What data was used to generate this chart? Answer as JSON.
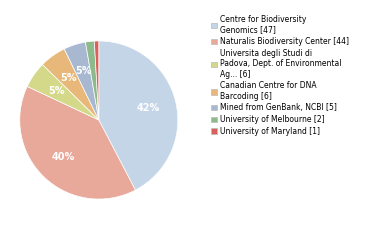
{
  "labels": [
    "Centre for Biodiversity\nGenomics [47]",
    "Naturalis Biodiversity Center [44]",
    "Universita degli Studi di\nPadova, Dept. of Environmental\nAg... [6]",
    "Canadian Centre for DNA\nBarcoding [6]",
    "Mined from GenBank, NCBI [5]",
    "University of Melbourne [2]",
    "University of Maryland [1]"
  ],
  "values": [
    47,
    44,
    6,
    6,
    5,
    2,
    1
  ],
  "colors": [
    "#c5d5e8",
    "#e8a89a",
    "#d4d98a",
    "#e8b87a",
    "#a8b8d0",
    "#8dba8d",
    "#d9615a"
  ],
  "startangle": 90,
  "figsize": [
    3.8,
    2.4
  ],
  "dpi": 100,
  "pct_threshold": 3.5
}
